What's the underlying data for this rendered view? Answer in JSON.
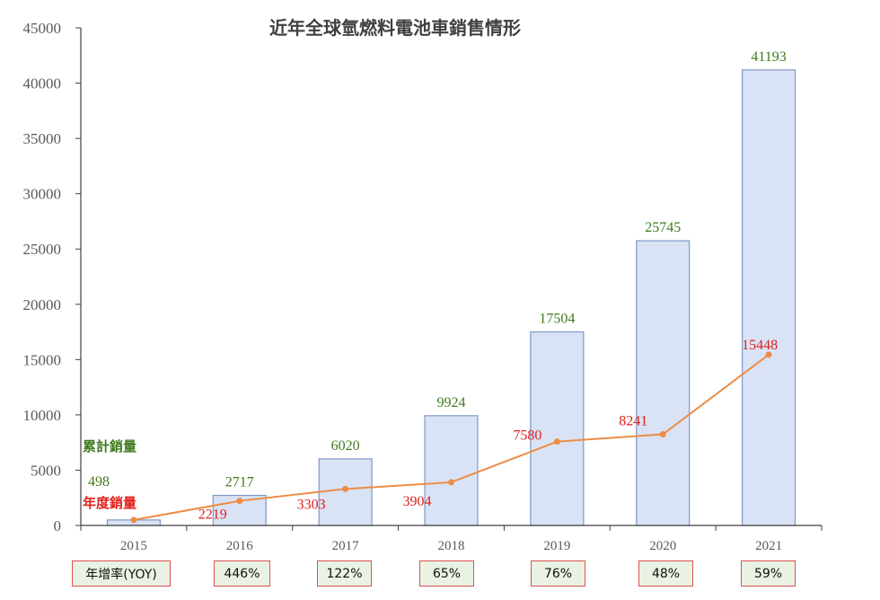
{
  "chart_data": {
    "type": "bar",
    "title": "近年全球氫燃料電池車銷售情形",
    "categories": [
      "2015",
      "2016",
      "2017",
      "2018",
      "2019",
      "2020",
      "2021"
    ],
    "ylim": [
      0,
      45000
    ],
    "yticks": [
      0,
      5000,
      10000,
      15000,
      20000,
      25000,
      30000,
      35000,
      40000,
      45000
    ],
    "grid": false,
    "series": [
      {
        "name": "累計銷量",
        "type": "bar",
        "color": "#d9e3f5",
        "label_color": "#3e7a1e",
        "values": [
          498,
          2717,
          6020,
          9924,
          17504,
          25745,
          41193
        ]
      },
      {
        "name": "年度銷量",
        "type": "line",
        "color": "#ed8c45",
        "label_color": "#e0201c",
        "values": [
          498,
          2219,
          3303,
          3904,
          7580,
          8241,
          15448
        ]
      }
    ],
    "yoy_label": "年增率(YOY)",
    "yoy_values": [
      "446%",
      "122%",
      "65%",
      "76%",
      "48%",
      "59%"
    ]
  }
}
